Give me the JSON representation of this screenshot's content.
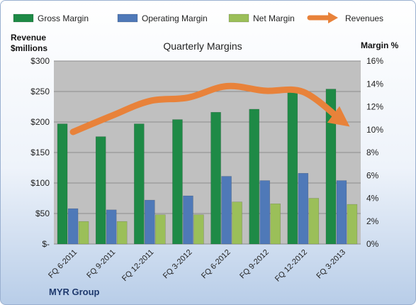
{
  "chart_data": {
    "type": "bar",
    "title": "Quarterly Margins",
    "categories": [
      "FQ 6-2011",
      "FQ 9-2011",
      "FQ 12-2011",
      "FQ 3-2012",
      "FQ 6-2012",
      "FQ 9-2012",
      "FQ 12-2012",
      "FQ 3-2013"
    ],
    "series": [
      {
        "name": "Gross Margin",
        "color": "#1e8a46",
        "values": [
          197,
          176,
          197,
          204,
          216,
          221,
          249,
          254
        ]
      },
      {
        "name": "Operating Margin",
        "color": "#4f79b8",
        "values": [
          58,
          56,
          72,
          79,
          111,
          104,
          116,
          104
        ]
      },
      {
        "name": "Net Margin",
        "color": "#9bbf59",
        "values": [
          37,
          37,
          48,
          48,
          69,
          66,
          75,
          65
        ]
      }
    ],
    "line_series": {
      "name": "Revenues",
      "color": "#e8823a",
      "axis": "right",
      "values": [
        9.8,
        11.2,
        12.5,
        12.8,
        13.8,
        13.4,
        13.3,
        10.8
      ]
    },
    "ylabel_left": "Revenue $millions",
    "ylabel_right": "Margin %",
    "yticks_left": [
      "$-",
      "$50",
      "$100",
      "$150",
      "$200",
      "$250",
      "$300"
    ],
    "yticks_right": [
      "0%",
      "2%",
      "4%",
      "6%",
      "8%",
      "10%",
      "12%",
      "14%",
      "16%"
    ],
    "ylim_left": [
      0,
      300
    ],
    "ylim_right": [
      0,
      16
    ],
    "legend_position": "top",
    "grid": true,
    "footer": "MYR Group"
  }
}
